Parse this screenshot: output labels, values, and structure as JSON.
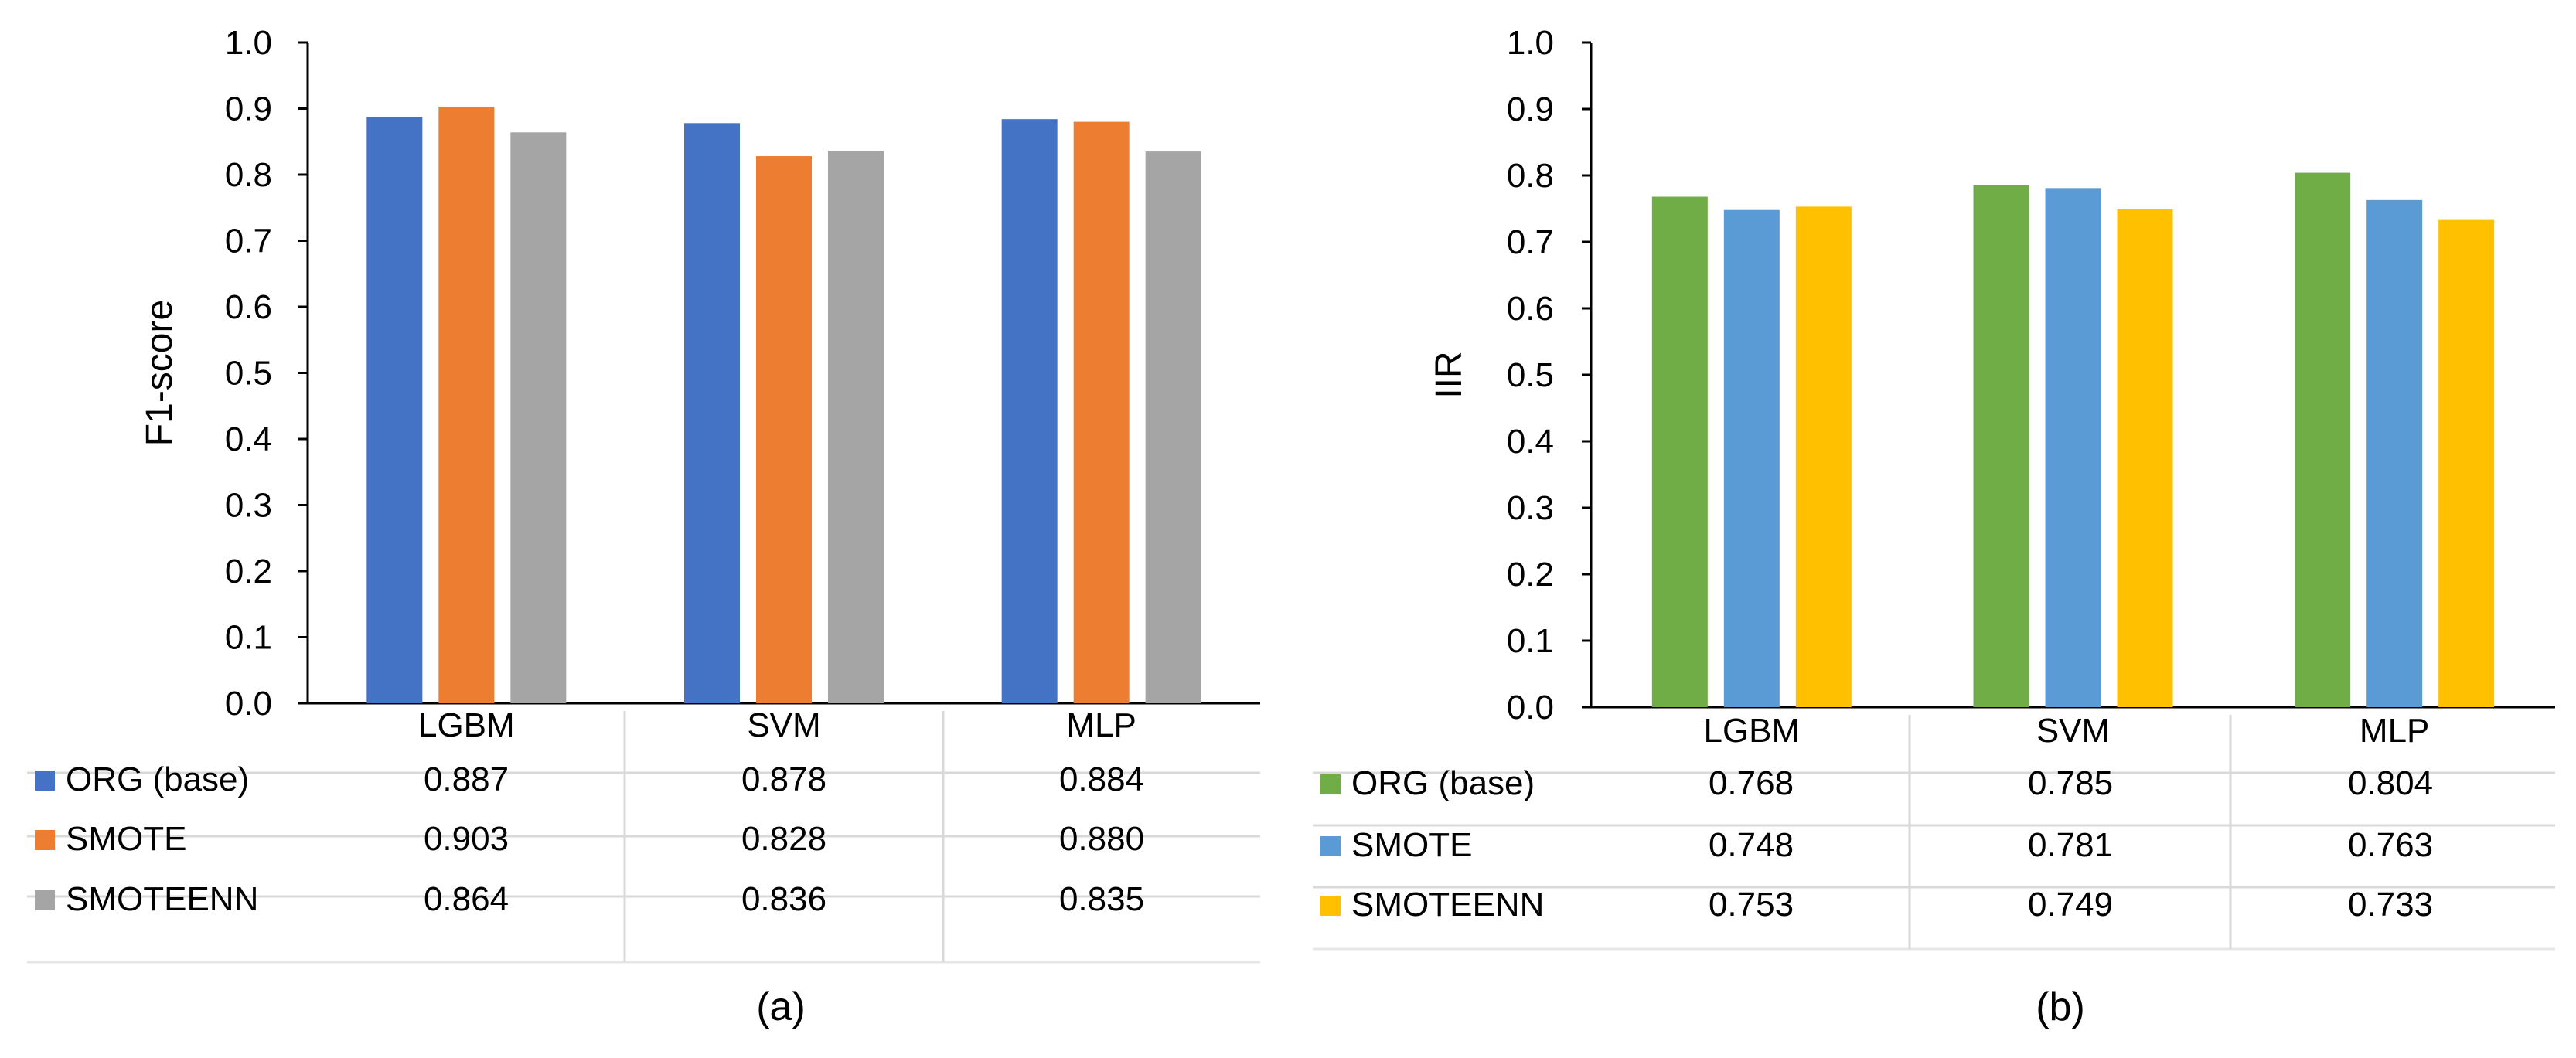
{
  "chart_data": [
    {
      "type": "bar",
      "panel_label": "(a)",
      "ylabel": "F1-score",
      "ylim": [
        0,
        1.0
      ],
      "yticks": [
        "0.0",
        "0.1",
        "0.2",
        "0.3",
        "0.4",
        "0.5",
        "0.6",
        "0.7",
        "0.8",
        "0.9",
        "1.0"
      ],
      "categories": [
        "LGBM",
        "SVM",
        "MLP"
      ],
      "series": [
        {
          "name": "ORG (base)",
          "color": "#4472C4",
          "values": [
            0.887,
            0.878,
            0.884
          ],
          "labels": [
            "0.887",
            "0.878",
            "0.884"
          ]
        },
        {
          "name": "SMOTE",
          "color": "#ED7D31",
          "values": [
            0.903,
            0.828,
            0.88
          ],
          "labels": [
            "0.903",
            "0.828",
            "0.880"
          ]
        },
        {
          "name": "SMOTEENN",
          "color": "#A5A5A5",
          "values": [
            0.864,
            0.836,
            0.835
          ],
          "labels": [
            "0.864",
            "0.836",
            "0.835"
          ]
        }
      ]
    },
    {
      "type": "bar",
      "panel_label": "(b)",
      "ylabel": "IIR",
      "ylim": [
        0,
        1.0
      ],
      "yticks": [
        "0.0",
        "0.1",
        "0.2",
        "0.3",
        "0.4",
        "0.5",
        "0.6",
        "0.7",
        "0.8",
        "0.9",
        "1.0"
      ],
      "categories": [
        "LGBM",
        "SVM",
        "MLP"
      ],
      "series": [
        {
          "name": "ORG (base)",
          "color": "#70AD47",
          "values": [
            0.768,
            0.785,
            0.804
          ],
          "labels": [
            "0.768",
            "0.785",
            "0.804"
          ]
        },
        {
          "name": "SMOTE",
          "color": "#5B9BD5",
          "values": [
            0.748,
            0.781,
            0.763
          ],
          "labels": [
            "0.748",
            "0.781",
            "0.763"
          ]
        },
        {
          "name": "SMOTEENN",
          "color": "#FFC000",
          "values": [
            0.753,
            0.749,
            0.733
          ],
          "labels": [
            "0.753",
            "0.749",
            "0.733"
          ]
        }
      ]
    }
  ]
}
